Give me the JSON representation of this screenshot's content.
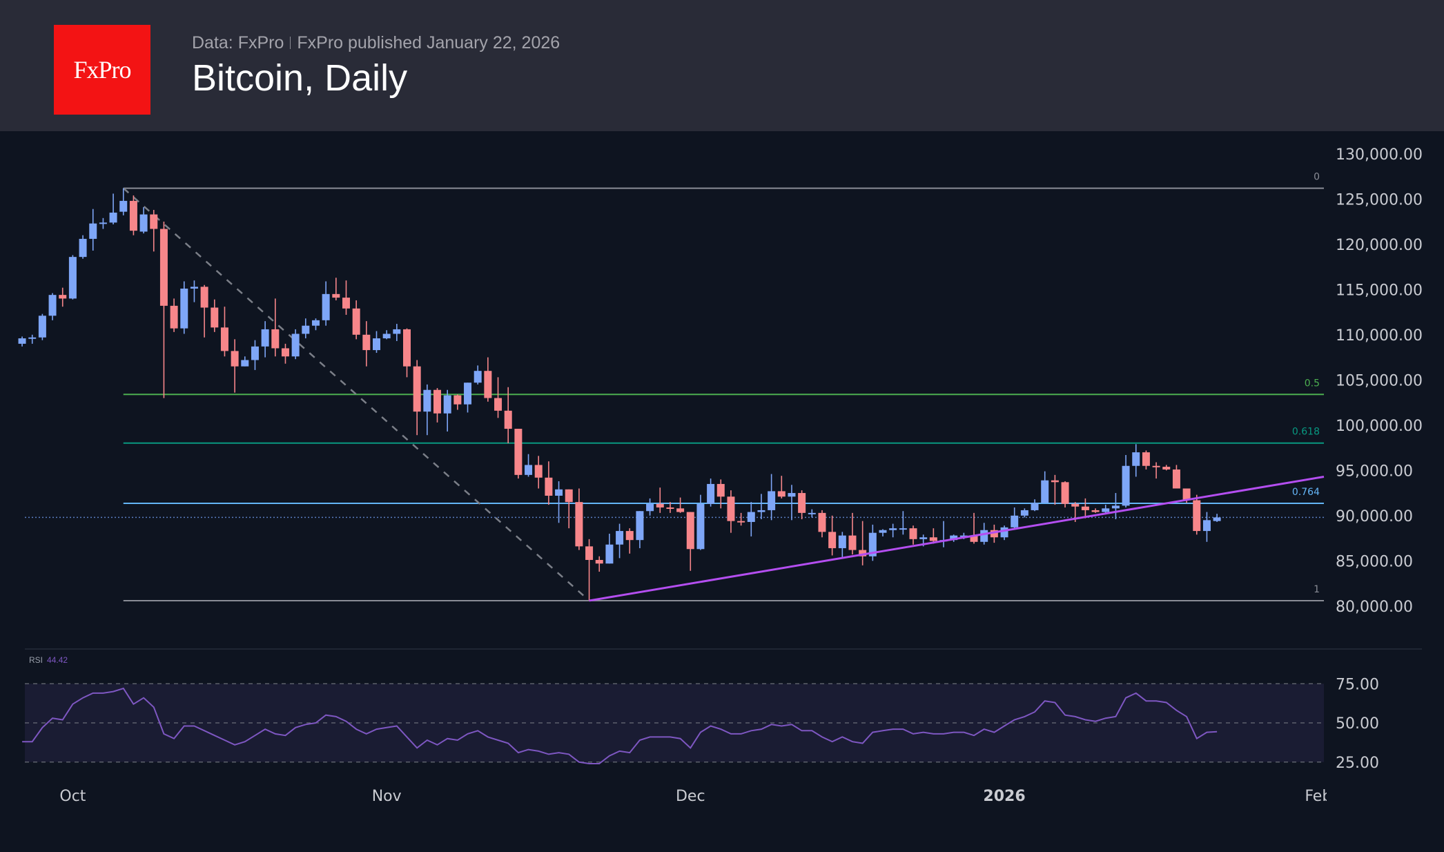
{
  "header": {
    "logo_text": "FxPro",
    "source": "Data: FxPro",
    "published": "FxPro published January 22, 2026",
    "title": "Bitcoin, Daily"
  },
  "colors": {
    "up": "#7ea6f7",
    "down": "#f7868a",
    "header_bg": "#292b37",
    "chart_bg": "#0e1420",
    "logo": "#f31314",
    "trendline": "#b44ef0",
    "rsi": "#7e57c2"
  },
  "chart_data": [
    {
      "type": "candlestick",
      "title": "",
      "y_axis": {
        "position": "right",
        "range": [
          76000,
          131000
        ],
        "ticks": [
          "130,000.00",
          "125,000.00",
          "120,000.00",
          "115,000.00",
          "110,000.00",
          "105,000.00",
          "100,000.00",
          "95,000.00",
          "90,000.00",
          "85,000.00",
          "80,000.00"
        ],
        "tick_values": [
          130000,
          125000,
          120000,
          115000,
          110000,
          105000,
          100000,
          95000,
          90000,
          85000,
          80000
        ]
      },
      "x_axis": {
        "ticks": [
          {
            "label": "Oct",
            "date": "2025-10-01",
            "bold": false
          },
          {
            "label": "Nov",
            "date": "2025-11-01",
            "bold": false
          },
          {
            "label": "Dec",
            "date": "2025-12-01",
            "bold": false
          },
          {
            "label": "2026",
            "date": "2026-01-01",
            "bold": true
          },
          {
            "label": "Feb",
            "date": "2026-02-01",
            "bold": false
          }
        ]
      },
      "grid": false,
      "last_price": 89800,
      "ohlc_fields": [
        "date",
        "open",
        "high",
        "low",
        "close"
      ],
      "candles": [
        [
          "2025-09-26",
          109.0,
          109.8,
          108.7,
          109.6
        ],
        [
          "2025-09-27",
          109.6,
          110.0,
          109.0,
          109.7
        ],
        [
          "2025-09-28",
          109.7,
          112.3,
          109.4,
          112.1
        ],
        [
          "2025-09-29",
          112.1,
          114.6,
          111.6,
          114.4
        ],
        [
          "2025-09-30",
          114.4,
          115.2,
          113.1,
          114.0
        ],
        [
          "2025-10-01",
          114.0,
          118.8,
          113.9,
          118.6
        ],
        [
          "2025-10-02",
          118.6,
          121.0,
          118.4,
          120.6
        ],
        [
          "2025-10-03",
          120.6,
          123.9,
          119.3,
          122.3
        ],
        [
          "2025-10-04",
          122.4,
          122.9,
          121.7,
          122.4
        ],
        [
          "2025-10-05",
          122.4,
          125.6,
          122.2,
          123.5
        ],
        [
          "2025-10-06",
          123.6,
          126.2,
          123.2,
          124.8
        ],
        [
          "2025-10-07",
          124.8,
          125.4,
          121.0,
          121.5
        ],
        [
          "2025-10-08",
          121.4,
          124.1,
          121.2,
          123.3
        ],
        [
          "2025-10-09",
          123.3,
          123.8,
          119.2,
          121.7
        ],
        [
          "2025-10-10",
          121.7,
          122.5,
          103.0,
          113.2
        ],
        [
          "2025-10-11",
          113.2,
          114.0,
          110.3,
          110.7
        ],
        [
          "2025-10-12",
          110.7,
          115.9,
          110.1,
          115.1
        ],
        [
          "2025-10-13",
          115.1,
          116.0,
          113.6,
          115.3
        ],
        [
          "2025-10-14",
          115.3,
          115.5,
          109.7,
          113.0
        ],
        [
          "2025-10-15",
          113.0,
          113.9,
          110.3,
          110.8
        ],
        [
          "2025-10-16",
          110.8,
          113.1,
          107.6,
          108.2
        ],
        [
          "2025-10-17",
          108.2,
          109.5,
          103.6,
          106.5
        ],
        [
          "2025-10-18",
          106.5,
          107.6,
          106.5,
          107.2
        ],
        [
          "2025-10-19",
          107.2,
          109.4,
          106.1,
          108.7
        ],
        [
          "2025-10-20",
          108.7,
          111.5,
          107.5,
          110.6
        ],
        [
          "2025-10-21",
          110.6,
          114.0,
          107.6,
          108.5
        ],
        [
          "2025-10-22",
          108.5,
          109.0,
          106.8,
          107.6
        ],
        [
          "2025-10-23",
          107.6,
          110.6,
          107.3,
          110.1
        ],
        [
          "2025-10-24",
          110.1,
          111.8,
          109.6,
          111.0
        ],
        [
          "2025-10-25",
          111.0,
          111.8,
          110.5,
          111.6
        ],
        [
          "2025-10-26",
          111.6,
          115.9,
          111.0,
          114.5
        ],
        [
          "2025-10-27",
          114.5,
          116.3,
          113.8,
          114.1
        ],
        [
          "2025-10-28",
          114.1,
          116.0,
          112.2,
          112.9
        ],
        [
          "2025-10-29",
          112.9,
          113.8,
          109.5,
          110.0
        ],
        [
          "2025-10-30",
          110.0,
          111.5,
          106.5,
          108.3
        ],
        [
          "2025-10-31",
          108.3,
          110.4,
          108.0,
          109.6
        ],
        [
          "2025-11-01",
          109.6,
          110.5,
          109.5,
          110.1
        ],
        [
          "2025-11-02",
          110.1,
          111.2,
          109.3,
          110.6
        ],
        [
          "2025-11-03",
          110.6,
          110.7,
          105.3,
          106.5
        ],
        [
          "2025-11-04",
          106.5,
          107.2,
          98.9,
          101.5
        ],
        [
          "2025-11-05",
          101.5,
          104.5,
          98.9,
          103.9
        ],
        [
          "2025-11-06",
          103.9,
          104.1,
          100.3,
          101.3
        ],
        [
          "2025-11-07",
          101.3,
          103.9,
          99.3,
          103.3
        ],
        [
          "2025-11-08",
          103.3,
          103.4,
          101.7,
          102.3
        ],
        [
          "2025-11-09",
          102.3,
          104.7,
          101.4,
          104.7
        ],
        [
          "2025-11-10",
          104.7,
          106.6,
          104.5,
          106.0
        ],
        [
          "2025-11-11",
          106.0,
          107.5,
          102.6,
          103.0
        ],
        [
          "2025-11-12",
          103.0,
          105.3,
          100.8,
          101.6
        ],
        [
          "2025-11-13",
          101.6,
          104.2,
          98.0,
          99.6
        ],
        [
          "2025-11-14",
          99.6,
          99.6,
          94.1,
          94.5
        ],
        [
          "2025-11-15",
          94.5,
          96.8,
          94.3,
          95.6
        ],
        [
          "2025-11-16",
          95.6,
          96.6,
          93.0,
          94.2
        ],
        [
          "2025-11-17",
          94.2,
          96.0,
          91.2,
          92.2
        ],
        [
          "2025-11-18",
          92.2,
          93.8,
          89.2,
          92.9
        ],
        [
          "2025-11-19",
          92.9,
          92.9,
          88.6,
          91.5
        ],
        [
          "2025-11-20",
          91.5,
          93.0,
          86.2,
          86.6
        ],
        [
          "2025-11-21",
          86.6,
          87.4,
          80.6,
          85.1
        ],
        [
          "2025-11-22",
          85.1,
          85.5,
          83.8,
          84.7
        ],
        [
          "2025-11-23",
          84.7,
          88.0,
          84.7,
          86.8
        ],
        [
          "2025-11-24",
          86.8,
          89.1,
          85.3,
          88.3
        ],
        [
          "2025-11-25",
          88.3,
          88.6,
          85.8,
          87.3
        ],
        [
          "2025-11-26",
          87.3,
          90.5,
          86.4,
          90.5
        ],
        [
          "2025-11-27",
          90.5,
          91.9,
          90.0,
          91.3
        ],
        [
          "2025-11-28",
          91.3,
          93.1,
          90.3,
          90.9
        ],
        [
          "2025-11-29",
          90.9,
          91.5,
          90.3,
          90.8
        ],
        [
          "2025-11-30",
          90.8,
          92.0,
          90.3,
          90.4
        ],
        [
          "2025-12-01",
          90.4,
          90.4,
          83.9,
          86.3
        ],
        [
          "2025-12-02",
          86.3,
          92.3,
          86.2,
          91.3
        ],
        [
          "2025-12-03",
          91.3,
          94.1,
          91.0,
          93.5
        ],
        [
          "2025-12-04",
          93.5,
          94.0,
          90.8,
          92.1
        ],
        [
          "2025-12-05",
          92.1,
          92.8,
          88.1,
          89.4
        ],
        [
          "2025-12-06",
          89.4,
          90.3,
          88.9,
          89.3
        ],
        [
          "2025-12-07",
          89.3,
          91.5,
          87.7,
          90.4
        ],
        [
          "2025-12-08",
          90.4,
          92.4,
          89.6,
          90.6
        ],
        [
          "2025-12-09",
          90.6,
          94.6,
          89.5,
          92.7
        ],
        [
          "2025-12-10",
          92.7,
          94.4,
          91.9,
          92.1
        ],
        [
          "2025-12-11",
          92.1,
          93.4,
          89.5,
          92.5
        ],
        [
          "2025-12-12",
          92.5,
          92.8,
          89.6,
          90.3
        ],
        [
          "2025-12-13",
          90.3,
          90.7,
          89.8,
          90.3
        ],
        [
          "2025-12-14",
          90.3,
          90.6,
          87.6,
          88.2
        ],
        [
          "2025-12-15",
          88.2,
          90.0,
          85.6,
          86.4
        ],
        [
          "2025-12-16",
          86.4,
          88.2,
          85.3,
          87.8
        ],
        [
          "2025-12-17",
          87.8,
          90.3,
          85.7,
          86.2
        ],
        [
          "2025-12-18",
          86.2,
          89.4,
          84.5,
          85.5
        ],
        [
          "2025-12-19",
          85.5,
          89.0,
          85.0,
          88.1
        ],
        [
          "2025-12-20",
          88.1,
          88.5,
          87.7,
          88.4
        ],
        [
          "2025-12-21",
          88.4,
          89.1,
          87.6,
          88.6
        ],
        [
          "2025-12-22",
          88.6,
          90.5,
          87.9,
          88.6
        ],
        [
          "2025-12-23",
          88.6,
          88.9,
          86.8,
          87.4
        ],
        [
          "2025-12-24",
          87.4,
          87.9,
          86.6,
          87.6
        ],
        [
          "2025-12-25",
          87.6,
          88.6,
          86.9,
          87.2
        ],
        [
          "2025-12-26",
          87.2,
          89.4,
          86.5,
          87.3
        ],
        [
          "2025-12-27",
          87.3,
          87.9,
          87.1,
          87.8
        ],
        [
          "2025-12-28",
          87.8,
          88.1,
          87.4,
          87.8
        ],
        [
          "2025-12-29",
          87.8,
          90.3,
          86.9,
          87.1
        ],
        [
          "2025-12-30",
          87.1,
          89.2,
          86.8,
          88.4
        ],
        [
          "2025-12-31",
          88.4,
          89.0,
          87.0,
          87.6
        ],
        [
          "2026-01-01",
          87.6,
          88.9,
          87.3,
          88.7
        ],
        [
          "2026-01-02",
          88.7,
          90.9,
          88.5,
          90.0
        ],
        [
          "2026-01-03",
          90.0,
          90.8,
          89.8,
          90.6
        ],
        [
          "2026-01-04",
          90.6,
          91.8,
          90.5,
          91.4
        ],
        [
          "2026-01-05",
          91.4,
          94.9,
          91.4,
          93.9
        ],
        [
          "2026-01-06",
          93.9,
          94.5,
          91.2,
          93.7
        ],
        [
          "2026-01-07",
          93.7,
          93.8,
          90.9,
          91.3
        ],
        [
          "2026-01-08",
          91.3,
          91.5,
          89.3,
          91.0
        ],
        [
          "2026-01-09",
          91.0,
          91.9,
          89.7,
          90.6
        ],
        [
          "2026-01-10",
          90.6,
          90.8,
          90.3,
          90.4
        ],
        [
          "2026-01-11",
          90.4,
          91.2,
          90.2,
          90.8
        ],
        [
          "2026-01-12",
          90.8,
          92.5,
          89.6,
          91.1
        ],
        [
          "2026-01-13",
          91.1,
          96.7,
          90.9,
          95.5
        ],
        [
          "2026-01-14",
          95.5,
          97.9,
          94.3,
          97.0
        ],
        [
          "2026-01-15",
          97.0,
          97.2,
          95.1,
          95.5
        ],
        [
          "2026-01-16",
          95.5,
          95.9,
          94.1,
          95.4
        ],
        [
          "2026-01-17",
          95.4,
          95.6,
          95.0,
          95.1
        ],
        [
          "2026-01-18",
          95.1,
          95.6,
          93.0,
          93.0
        ],
        [
          "2026-01-19",
          93.0,
          93.0,
          91.4,
          91.7
        ],
        [
          "2026-01-20",
          91.7,
          92.3,
          87.9,
          88.3
        ],
        [
          "2026-01-21",
          88.3,
          90.4,
          87.1,
          89.5
        ],
        [
          "2026-01-22",
          89.4,
          90.2,
          89.3,
          89.8
        ]
      ],
      "fibonacci": {
        "from": {
          "date": "2025-10-06",
          "price": 126200
        },
        "to": {
          "date": "2025-11-21",
          "price": 80600
        },
        "levels": [
          {
            "label": "0",
            "ratio": 0,
            "color": "#8a8d96"
          },
          {
            "label": "0.5",
            "ratio": 0.5,
            "color": "#4caf50"
          },
          {
            "label": "0.618",
            "ratio": 0.618,
            "color": "#089981"
          },
          {
            "label": "0.764",
            "ratio": 0.764,
            "color": "#64b5f6"
          },
          {
            "label": "1",
            "ratio": 1,
            "color": "#8a8d96"
          }
        ]
      },
      "trendline": {
        "from": {
          "date": "2025-11-21",
          "price": 80600
        },
        "to": {
          "date": "2026-02-01",
          "price": 94300
        }
      }
    },
    {
      "type": "line",
      "label": "RSI",
      "current_value": "44.42",
      "y_axis": {
        "range": [
          20,
          80
        ],
        "ticks": [
          "75.00",
          "50.00",
          "25.00"
        ],
        "tick_values": [
          75,
          50,
          25
        ]
      },
      "values": [
        38,
        38,
        47,
        53,
        52,
        62,
        66,
        69,
        69,
        70,
        72,
        62,
        66,
        60,
        43,
        40,
        48,
        48,
        45,
        42,
        39,
        36,
        38,
        42,
        46,
        43,
        42,
        47,
        49,
        50,
        55,
        54,
        51,
        46,
        43,
        46,
        47,
        48,
        41,
        34,
        39,
        36,
        40,
        39,
        43,
        45,
        41,
        39,
        37,
        31,
        33,
        32,
        30,
        31,
        30,
        25,
        24,
        24,
        29,
        32,
        31,
        39,
        41,
        41,
        41,
        40,
        34,
        44,
        48,
        46,
        43,
        43,
        45,
        46,
        49,
        48,
        49,
        45,
        45,
        41,
        38,
        41,
        38,
        37,
        44,
        45,
        46,
        46,
        43,
        44,
        43,
        43,
        44,
        44,
        42,
        46,
        44,
        48,
        52,
        54,
        57,
        64,
        63,
        55,
        54,
        52,
        51,
        53,
        54,
        66,
        69,
        64,
        64,
        63,
        58,
        54,
        40,
        44,
        44.42
      ]
    }
  ]
}
